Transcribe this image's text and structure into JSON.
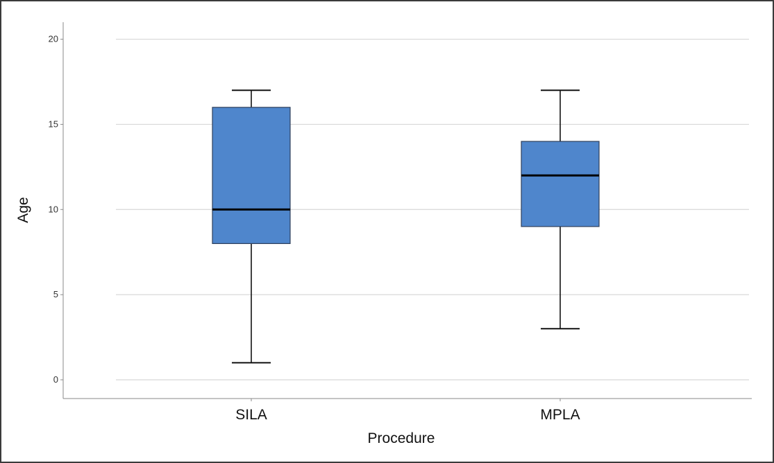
{
  "chart_data": {
    "type": "box",
    "xlabel": "Procedure",
    "ylabel": "Age",
    "ylim": [
      -1.1,
      21
    ],
    "yticks": [
      "0",
      "5",
      "10",
      "15",
      "20"
    ],
    "grid": true,
    "colors": {
      "box": "#4f86cc",
      "box_edge": "#2f3f5a",
      "median": "#000000",
      "grid": "#d8d8d8"
    },
    "categories": [
      "SILA",
      "MPLA"
    ],
    "boxes": [
      {
        "name": "SILA",
        "min": 1,
        "q1": 8,
        "median": 10,
        "q3": 16,
        "max": 17
      },
      {
        "name": "MPLA",
        "min": 3,
        "q1": 9,
        "median": 12,
        "q3": 14,
        "max": 17
      }
    ]
  }
}
